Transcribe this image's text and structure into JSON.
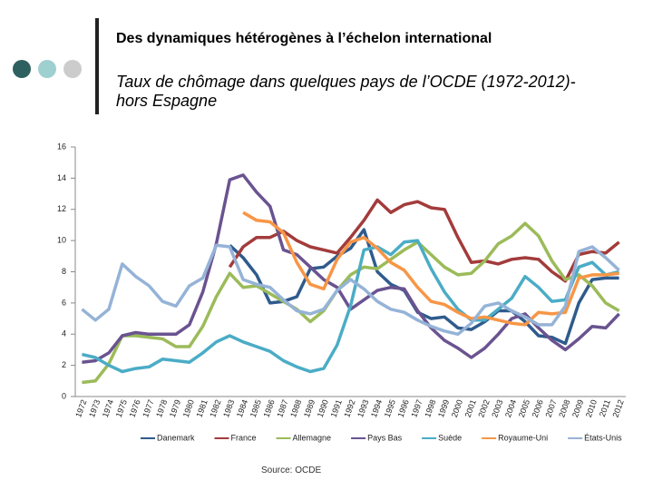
{
  "header": {
    "title": "Des dynamiques hétérogènes à l’échelon international"
  },
  "source": "Source: OCDE",
  "chart_data": {
    "type": "line",
    "title": "Taux de chômage dans quelques pays de l’OCDE (1972-2012)-hors Espagne",
    "categories": [
      "1972",
      "1973",
      "1974",
      "1975",
      "1976",
      "1977",
      "1978",
      "1979",
      "1980",
      "1981",
      "1982",
      "1983",
      "1984",
      "1985",
      "1986",
      "1987",
      "1988",
      "1989",
      "1990",
      "1991",
      "1992",
      "1993",
      "1994",
      "1995",
      "1996",
      "1997",
      "1998",
      "1999",
      "2000",
      "2001",
      "2002",
      "2003",
      "2004",
      "2005",
      "2006",
      "2007",
      "2008",
      "2009",
      "2010",
      "2011",
      "2012"
    ],
    "ylim": [
      0,
      16
    ],
    "yticks": [
      0,
      2,
      4,
      6,
      8,
      10,
      12,
      14,
      16
    ],
    "grid": false,
    "legend": "bottom",
    "series": [
      {
        "name": "Danemark",
        "color": "#2f5b8c",
        "values": [
          null,
          null,
          null,
          null,
          null,
          null,
          null,
          null,
          null,
          null,
          null,
          9.7,
          8.9,
          7.8,
          6.0,
          6.1,
          6.4,
          8.2,
          8.3,
          9.0,
          9.5,
          10.7,
          8.0,
          7.2,
          6.8,
          5.4,
          5.0,
          5.1,
          4.4,
          4.3,
          4.8,
          5.5,
          5.5,
          4.8,
          3.9,
          3.8,
          3.4,
          6.0,
          7.5,
          7.6,
          7.6
        ]
      },
      {
        "name": "France",
        "color": "#a33b3b",
        "values": [
          null,
          null,
          null,
          null,
          null,
          null,
          null,
          null,
          null,
          null,
          null,
          8.3,
          9.6,
          10.2,
          10.2,
          10.6,
          10.0,
          9.6,
          9.4,
          9.2,
          10.2,
          11.3,
          12.6,
          11.8,
          12.3,
          12.5,
          12.1,
          12.0,
          10.2,
          8.6,
          8.7,
          8.5,
          8.8,
          8.9,
          8.8,
          8.0,
          7.4,
          9.1,
          9.3,
          9.2,
          9.9
        ]
      },
      {
        "name": "Allemagne",
        "color": "#9bbb59",
        "values": [
          0.9,
          1.0,
          2.1,
          3.9,
          3.9,
          3.8,
          3.7,
          3.2,
          3.2,
          4.5,
          6.4,
          7.9,
          7.0,
          7.1,
          6.6,
          6.1,
          5.6,
          4.8,
          5.5,
          6.8,
          7.8,
          8.3,
          8.2,
          8.8,
          9.4,
          9.9,
          9.1,
          8.3,
          7.8,
          7.9,
          8.7,
          9.8,
          10.3,
          11.1,
          10.3,
          8.7,
          7.5,
          7.8,
          7.1,
          6.0,
          5.5
        ]
      },
      {
        "name": "Pays Bas",
        "color": "#6a5390",
        "values": [
          2.2,
          2.3,
          2.8,
          3.9,
          4.1,
          4.0,
          4.0,
          4.0,
          4.6,
          6.7,
          9.8,
          13.9,
          14.2,
          13.1,
          12.2,
          9.4,
          9.1,
          8.3,
          7.5,
          7.0,
          5.6,
          6.2,
          6.8,
          7.0,
          6.9,
          5.5,
          4.4,
          3.6,
          3.1,
          2.5,
          3.1,
          4.0,
          5.0,
          5.3,
          4.4,
          3.6,
          3.0,
          3.7,
          4.5,
          4.4,
          5.3
        ]
      },
      {
        "name": "Suède",
        "color": "#4bacc6",
        "values": [
          2.7,
          2.5,
          2.0,
          1.6,
          1.8,
          1.9,
          2.4,
          2.3,
          2.2,
          2.8,
          3.5,
          3.9,
          3.5,
          3.2,
          2.9,
          2.3,
          1.9,
          1.6,
          1.8,
          3.3,
          5.8,
          9.4,
          9.6,
          9.1,
          9.9,
          10.0,
          8.2,
          6.7,
          5.6,
          4.9,
          4.9,
          5.6,
          6.3,
          7.7,
          7.0,
          6.1,
          6.2,
          8.3,
          8.6,
          7.8,
          8.0
        ]
      },
      {
        "name": "Royaume-Uni",
        "color": "#f79646",
        "values": [
          null,
          null,
          null,
          null,
          null,
          null,
          null,
          null,
          null,
          null,
          null,
          null,
          11.8,
          11.3,
          11.2,
          10.5,
          8.6,
          7.2,
          6.9,
          8.8,
          9.9,
          10.2,
          9.5,
          8.6,
          8.1,
          7.0,
          6.1,
          5.9,
          5.4,
          5.0,
          5.1,
          4.9,
          4.7,
          4.6,
          5.4,
          5.3,
          5.4,
          7.6,
          7.8,
          7.8,
          7.9
        ]
      },
      {
        "name": "États-Unis",
        "color": "#95b3d7",
        "values": [
          5.6,
          4.9,
          5.6,
          8.5,
          7.7,
          7.1,
          6.1,
          5.8,
          7.1,
          7.6,
          9.7,
          9.6,
          7.5,
          7.2,
          7.0,
          6.2,
          5.5,
          5.3,
          5.6,
          6.8,
          7.5,
          6.9,
          6.1,
          5.6,
          5.4,
          4.9,
          4.5,
          4.2,
          4.0,
          4.7,
          5.8,
          6.0,
          5.5,
          5.1,
          4.6,
          4.6,
          5.8,
          9.3,
          9.6,
          8.9,
          8.1
        ]
      }
    ]
  }
}
